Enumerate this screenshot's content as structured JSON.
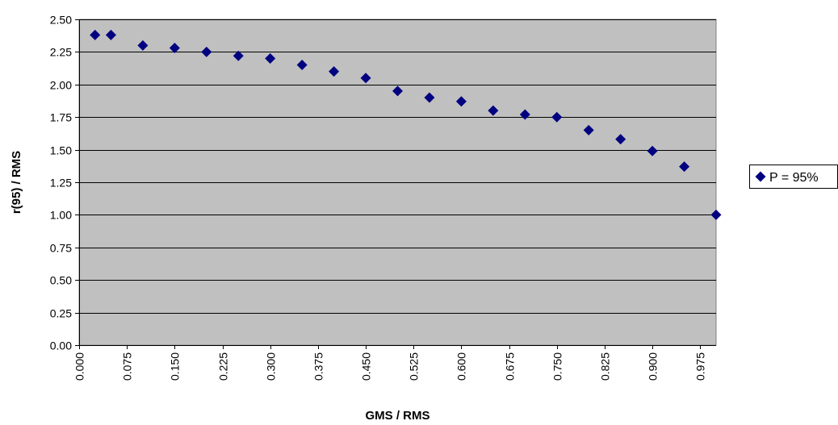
{
  "chart_data": {
    "type": "scatter",
    "title": "",
    "xlabel": "GMS / RMS",
    "ylabel": "r(95) / RMS",
    "xlim": [
      0.0,
      1.0
    ],
    "ylim": [
      0.0,
      2.5
    ],
    "x_ticks": [
      "0.000",
      "0.075",
      "0.150",
      "0.225",
      "0.300",
      "0.375",
      "0.450",
      "0.525",
      "0.600",
      "0.675",
      "0.750",
      "0.825",
      "0.900",
      "0.975"
    ],
    "y_ticks": [
      "0.00",
      "0.25",
      "0.50",
      "0.75",
      "1.00",
      "1.25",
      "1.50",
      "1.75",
      "2.00",
      "2.25",
      "2.50"
    ],
    "grid": "horizontal",
    "plot_background": "#c0c0c0",
    "legend_position": "right",
    "series": [
      {
        "name": "P = 95%",
        "color": "#000080",
        "marker": "diamond",
        "x": [
          0.025,
          0.05,
          0.1,
          0.15,
          0.2,
          0.25,
          0.3,
          0.35,
          0.4,
          0.45,
          0.5,
          0.55,
          0.6,
          0.65,
          0.7,
          0.75,
          0.8,
          0.85,
          0.9,
          0.95,
          1.0
        ],
        "y": [
          2.38,
          2.38,
          2.3,
          2.28,
          2.25,
          2.22,
          2.2,
          2.15,
          2.1,
          2.05,
          1.95,
          1.9,
          1.87,
          1.8,
          1.77,
          1.75,
          1.65,
          1.58,
          1.49,
          1.37,
          1.0
        ]
      }
    ]
  }
}
